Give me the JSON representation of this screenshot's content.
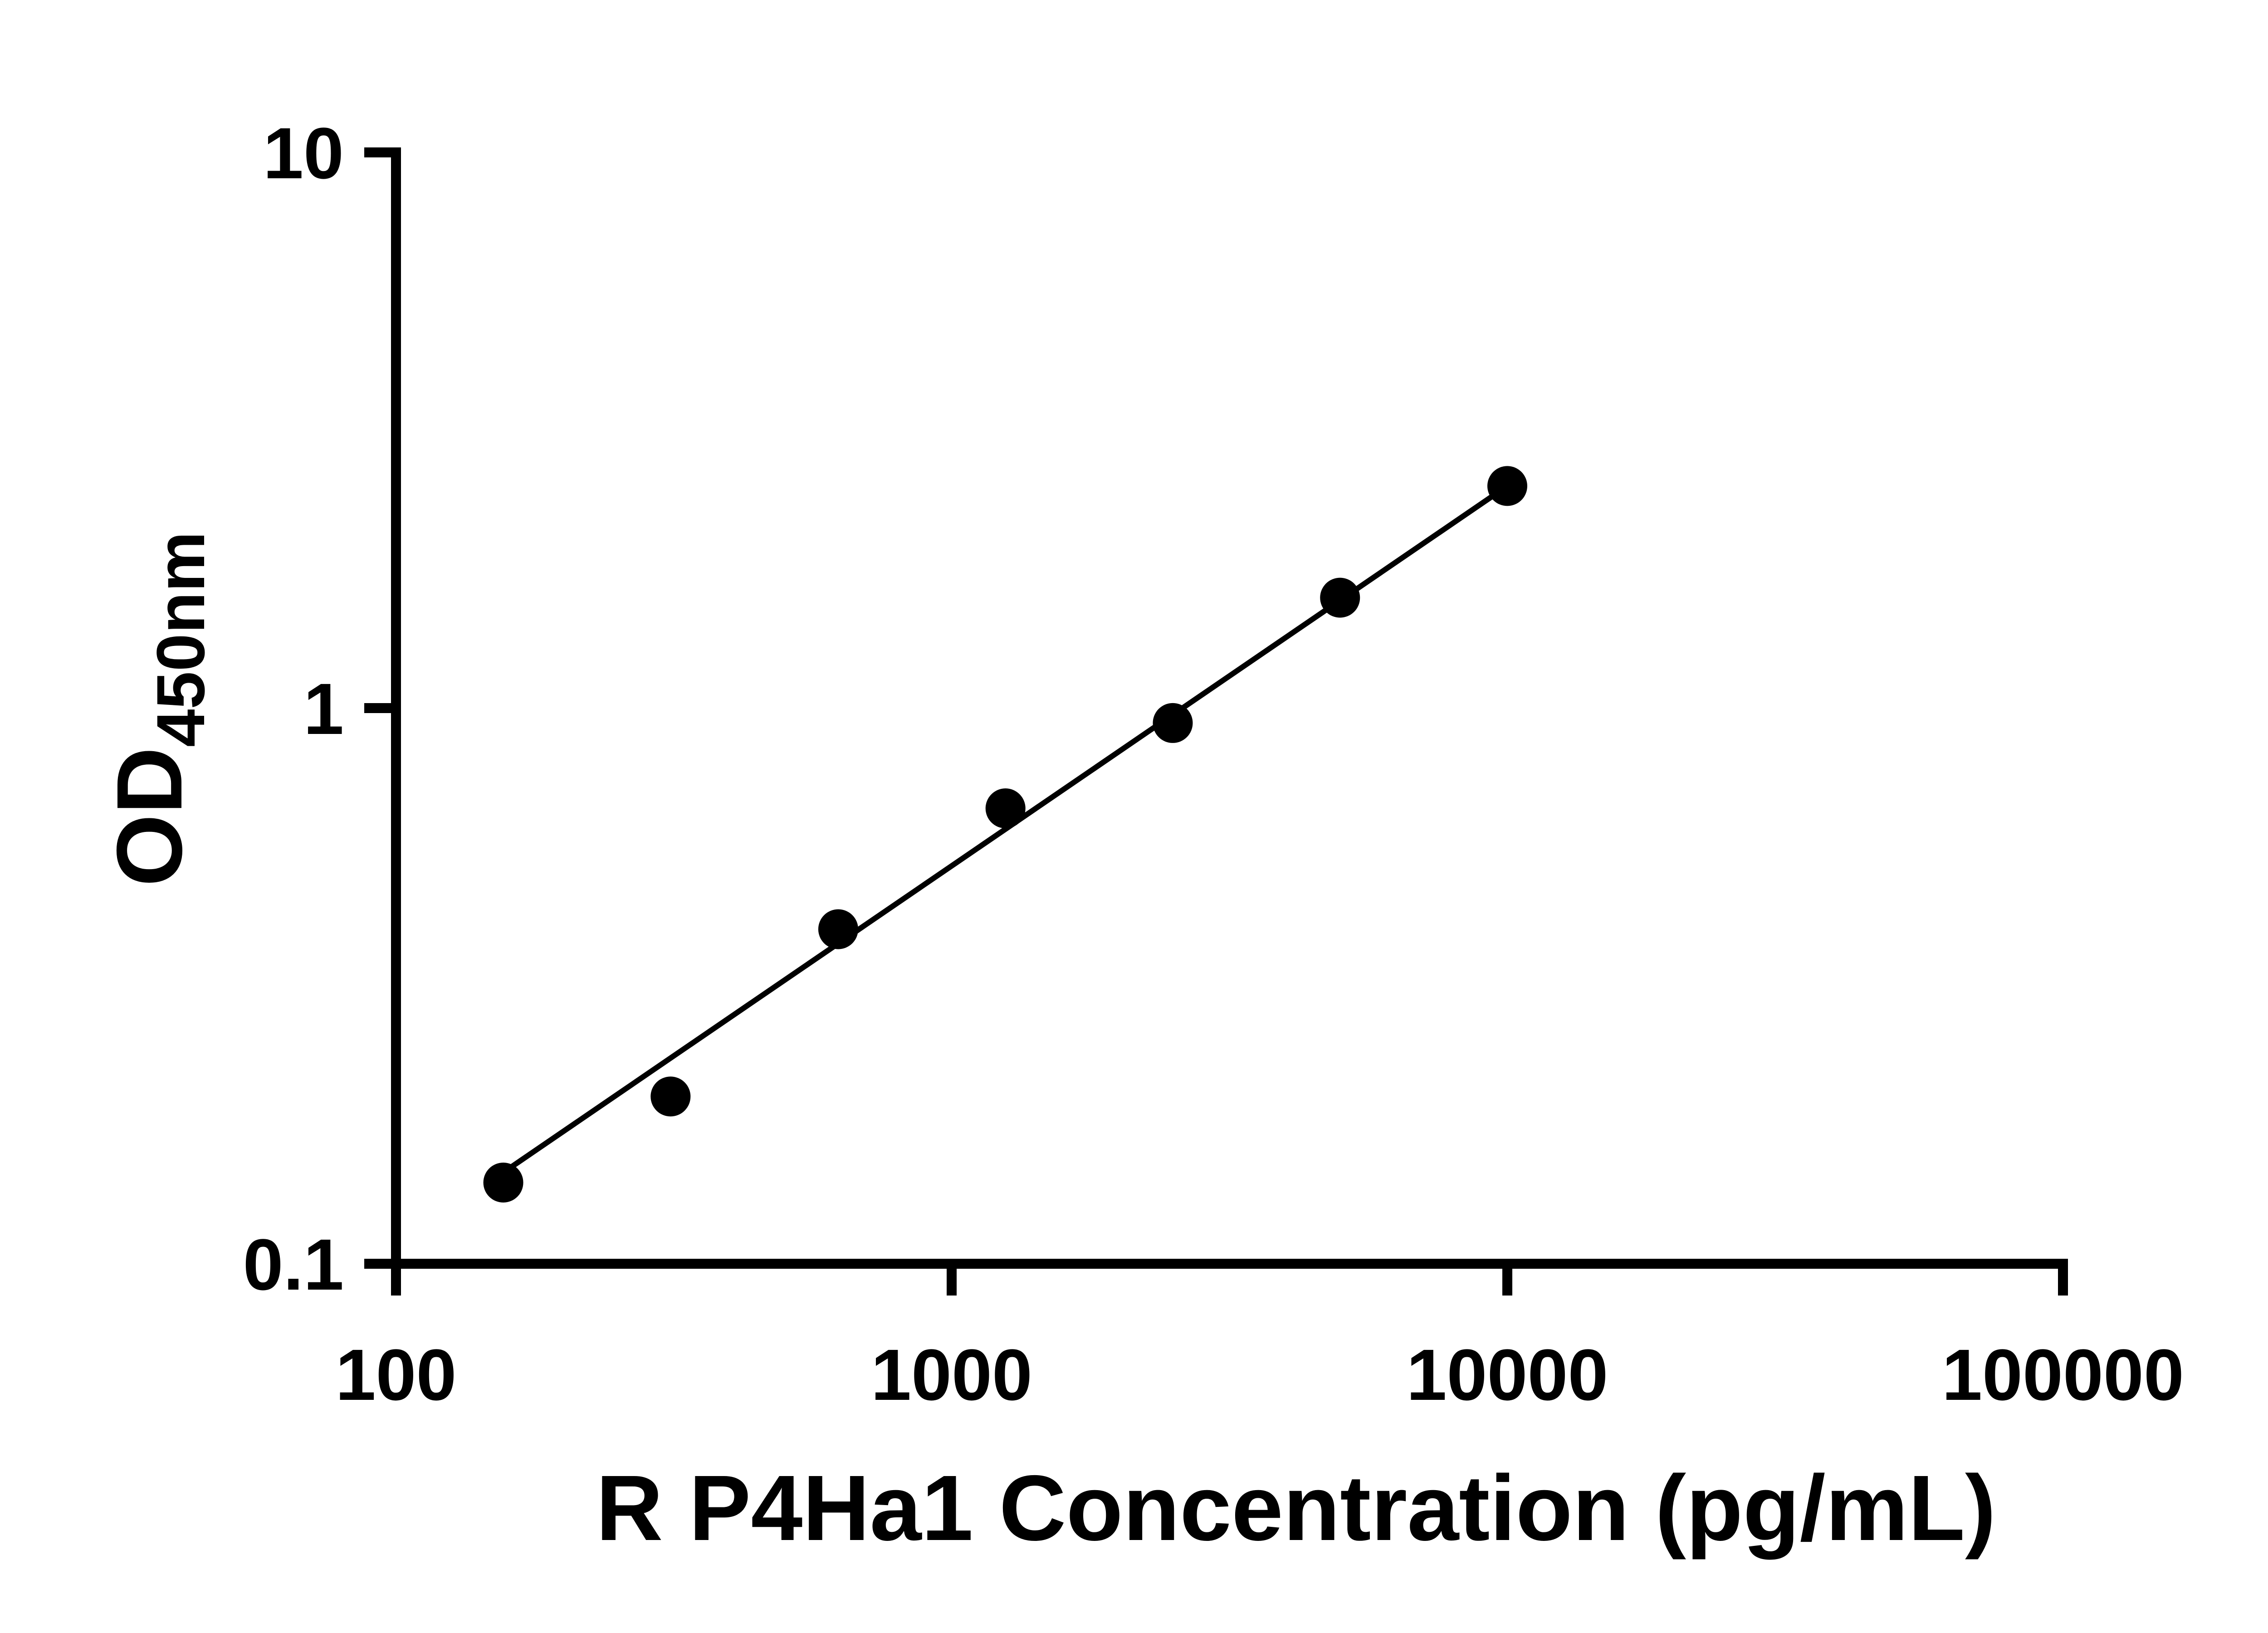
{
  "chart_data": {
    "type": "scatter",
    "title": "",
    "xlabel": "R P4Ha1 Concentration (pg/mL)",
    "ylabel": "OD",
    "ylabel_subscript": "450nm",
    "x_scale": "log",
    "y_scale": "log",
    "xlim": [
      100,
      100000
    ],
    "ylim": [
      0.1,
      10
    ],
    "x_ticks": [
      100,
      1000,
      10000,
      100000
    ],
    "x_tick_labels": [
      "100",
      "1000",
      "10000",
      "100000"
    ],
    "y_ticks": [
      0.1,
      1,
      10
    ],
    "y_tick_labels": [
      "0.1",
      "1",
      "10"
    ],
    "grid": false,
    "legend": false,
    "marker": "filled-circle",
    "marker_color": "#000000",
    "line_color": "#000000",
    "series": [
      {
        "x": [
          156,
          312,
          625,
          1250,
          2500,
          5000,
          10000
        ],
        "y": [
          0.14,
          0.2,
          0.4,
          0.66,
          0.94,
          1.58,
          2.51
        ]
      }
    ],
    "trend_line": {
      "x1": 156,
      "y1": 0.146,
      "x2": 10000,
      "y2": 2.51
    }
  }
}
